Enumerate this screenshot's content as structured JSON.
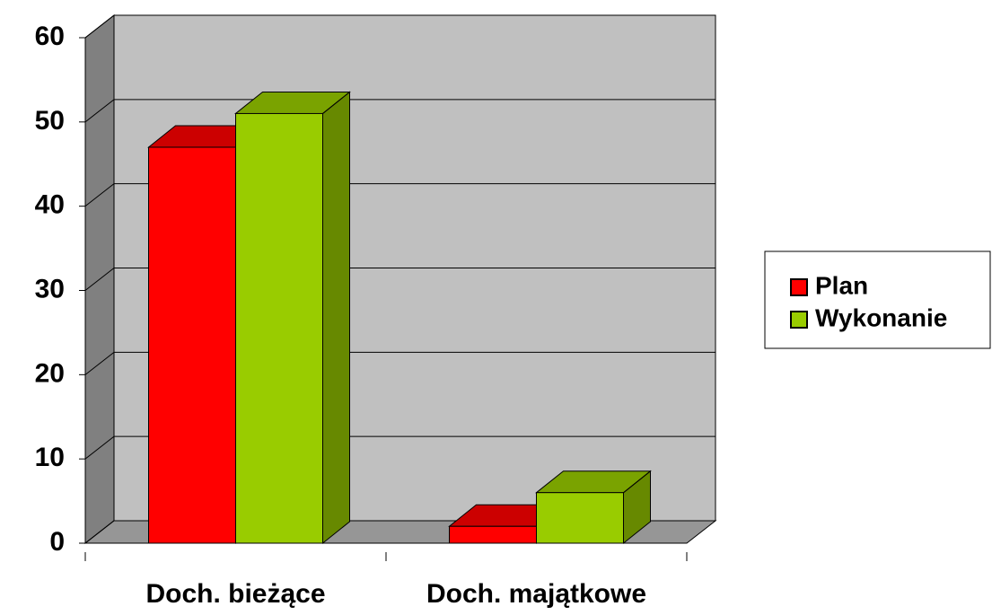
{
  "chart_data": {
    "type": "bar3d",
    "categories": [
      "Doch. bieżące",
      "Doch. majątkowe"
    ],
    "series": [
      {
        "name": "Plan",
        "color": "#ff0000",
        "values": [
          47,
          2
        ]
      },
      {
        "name": "Wykonanie",
        "color": "#99cc00",
        "values": [
          51,
          6
        ]
      }
    ],
    "ylim": [
      0,
      60
    ],
    "yticks": [
      0,
      10,
      20,
      30,
      40,
      50,
      60
    ],
    "grid": true,
    "legend": "right"
  }
}
